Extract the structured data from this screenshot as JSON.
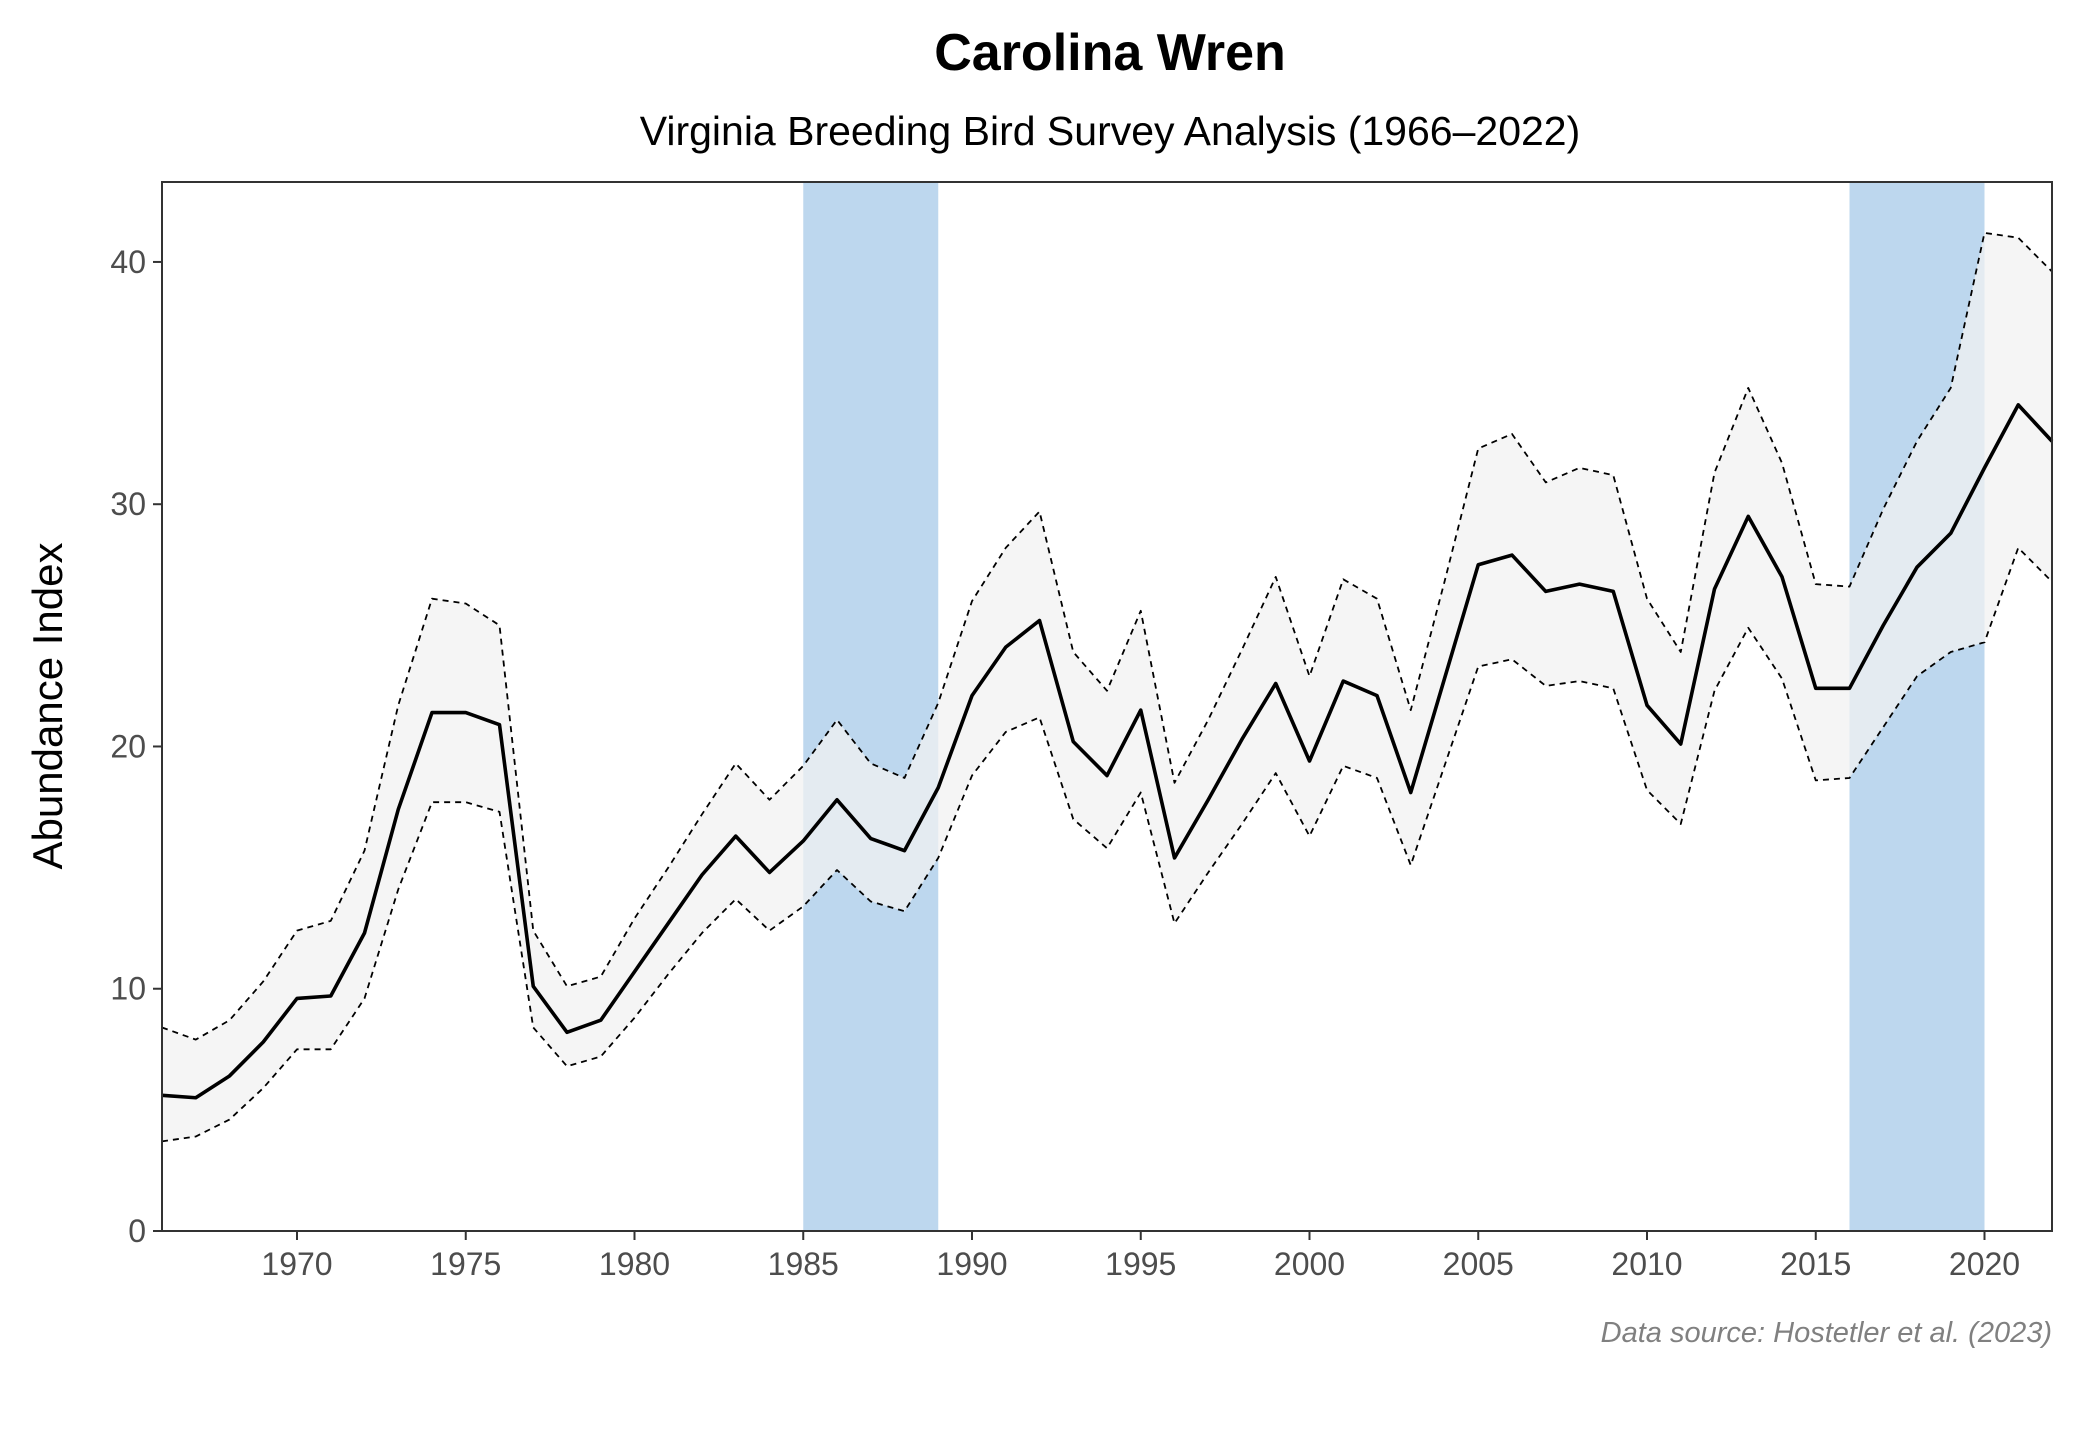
{
  "chart_data": {
    "type": "line",
    "title": "Carolina Wren",
    "subtitle": "Virginia Breeding Bird Survey Analysis (1966–2022)",
    "xlabel": "",
    "ylabel": "Abundance Index",
    "caption": "Data source: Hostetler et al. (2023)",
    "xlim": [
      1966,
      2022
    ],
    "ylim": [
      0,
      43.3
    ],
    "x_ticks": [
      1970,
      1975,
      1980,
      1985,
      1990,
      1995,
      2000,
      2005,
      2010,
      2015,
      2020
    ],
    "y_ticks": [
      0,
      10,
      20,
      30,
      40
    ],
    "grid": false,
    "highlight_periods": [
      [
        1985,
        1989
      ],
      [
        2016,
        2020
      ]
    ],
    "colors": {
      "line": "#000000",
      "ribbon": "#f2f2f2",
      "highlight": "#bdd7ee",
      "axis": "#333333"
    },
    "x": [
      1966,
      1967,
      1968,
      1969,
      1970,
      1971,
      1972,
      1973,
      1974,
      1975,
      1976,
      1977,
      1978,
      1979,
      1980,
      1981,
      1982,
      1983,
      1984,
      1985,
      1986,
      1987,
      1988,
      1989,
      1990,
      1991,
      1992,
      1993,
      1994,
      1995,
      1996,
      1997,
      1998,
      1999,
      2000,
      2001,
      2002,
      2003,
      2004,
      2005,
      2006,
      2007,
      2008,
      2009,
      2010,
      2011,
      2012,
      2013,
      2014,
      2015,
      2016,
      2017,
      2018,
      2019,
      2020,
      2021,
      2022
    ],
    "series": [
      {
        "name": "Abundance Index",
        "style": "solid",
        "values": [
          5.6,
          5.5,
          6.4,
          7.8,
          9.6,
          9.7,
          12.3,
          17.4,
          21.4,
          21.4,
          20.9,
          10.1,
          8.2,
          8.7,
          10.7,
          12.7,
          14.7,
          16.3,
          14.8,
          16.1,
          17.8,
          16.2,
          15.7,
          18.3,
          22.1,
          24.1,
          25.2,
          20.2,
          18.8,
          21.5,
          15.4,
          17.8,
          20.3,
          22.6,
          19.4,
          22.7,
          22.1,
          18.1,
          22.8,
          27.5,
          27.9,
          26.4,
          26.7,
          26.4,
          21.7,
          20.1,
          26.5,
          29.5,
          27.0,
          22.4,
          22.4,
          25.0,
          27.4,
          28.8,
          31.5,
          34.1,
          32.6
        ]
      },
      {
        "name": "Upper credible limit",
        "style": "dashed",
        "values": [
          8.4,
          7.9,
          8.7,
          10.3,
          12.4,
          12.8,
          15.7,
          21.7,
          26.1,
          25.9,
          25.0,
          12.4,
          10.1,
          10.5,
          12.9,
          15.0,
          17.2,
          19.3,
          17.8,
          19.2,
          21.1,
          19.3,
          18.7,
          21.8,
          26.0,
          28.2,
          29.7,
          23.9,
          22.3,
          25.6,
          18.5,
          21.1,
          24.0,
          27.0,
          22.9,
          26.9,
          26.1,
          21.5,
          26.8,
          32.3,
          32.9,
          30.9,
          31.5,
          31.2,
          26.1,
          23.9,
          31.3,
          34.8,
          31.7,
          26.7,
          26.6,
          29.8,
          32.6,
          34.8,
          41.2,
          41.0,
          39.6
        ]
      },
      {
        "name": "Lower credible limit",
        "style": "dashed",
        "values": [
          3.7,
          3.9,
          4.6,
          5.9,
          7.5,
          7.5,
          9.6,
          14.1,
          17.7,
          17.7,
          17.3,
          8.4,
          6.8,
          7.2,
          8.8,
          10.6,
          12.3,
          13.7,
          12.4,
          13.4,
          14.9,
          13.6,
          13.2,
          15.4,
          18.8,
          20.6,
          21.2,
          17.0,
          15.8,
          18.1,
          12.7,
          14.8,
          16.8,
          18.9,
          16.3,
          19.2,
          18.7,
          15.1,
          19.2,
          23.3,
          23.6,
          22.5,
          22.7,
          22.4,
          18.2,
          16.8,
          22.3,
          24.9,
          22.8,
          18.6,
          18.7,
          20.8,
          22.9,
          23.9,
          24.3,
          28.2,
          26.8
        ]
      }
    ]
  }
}
